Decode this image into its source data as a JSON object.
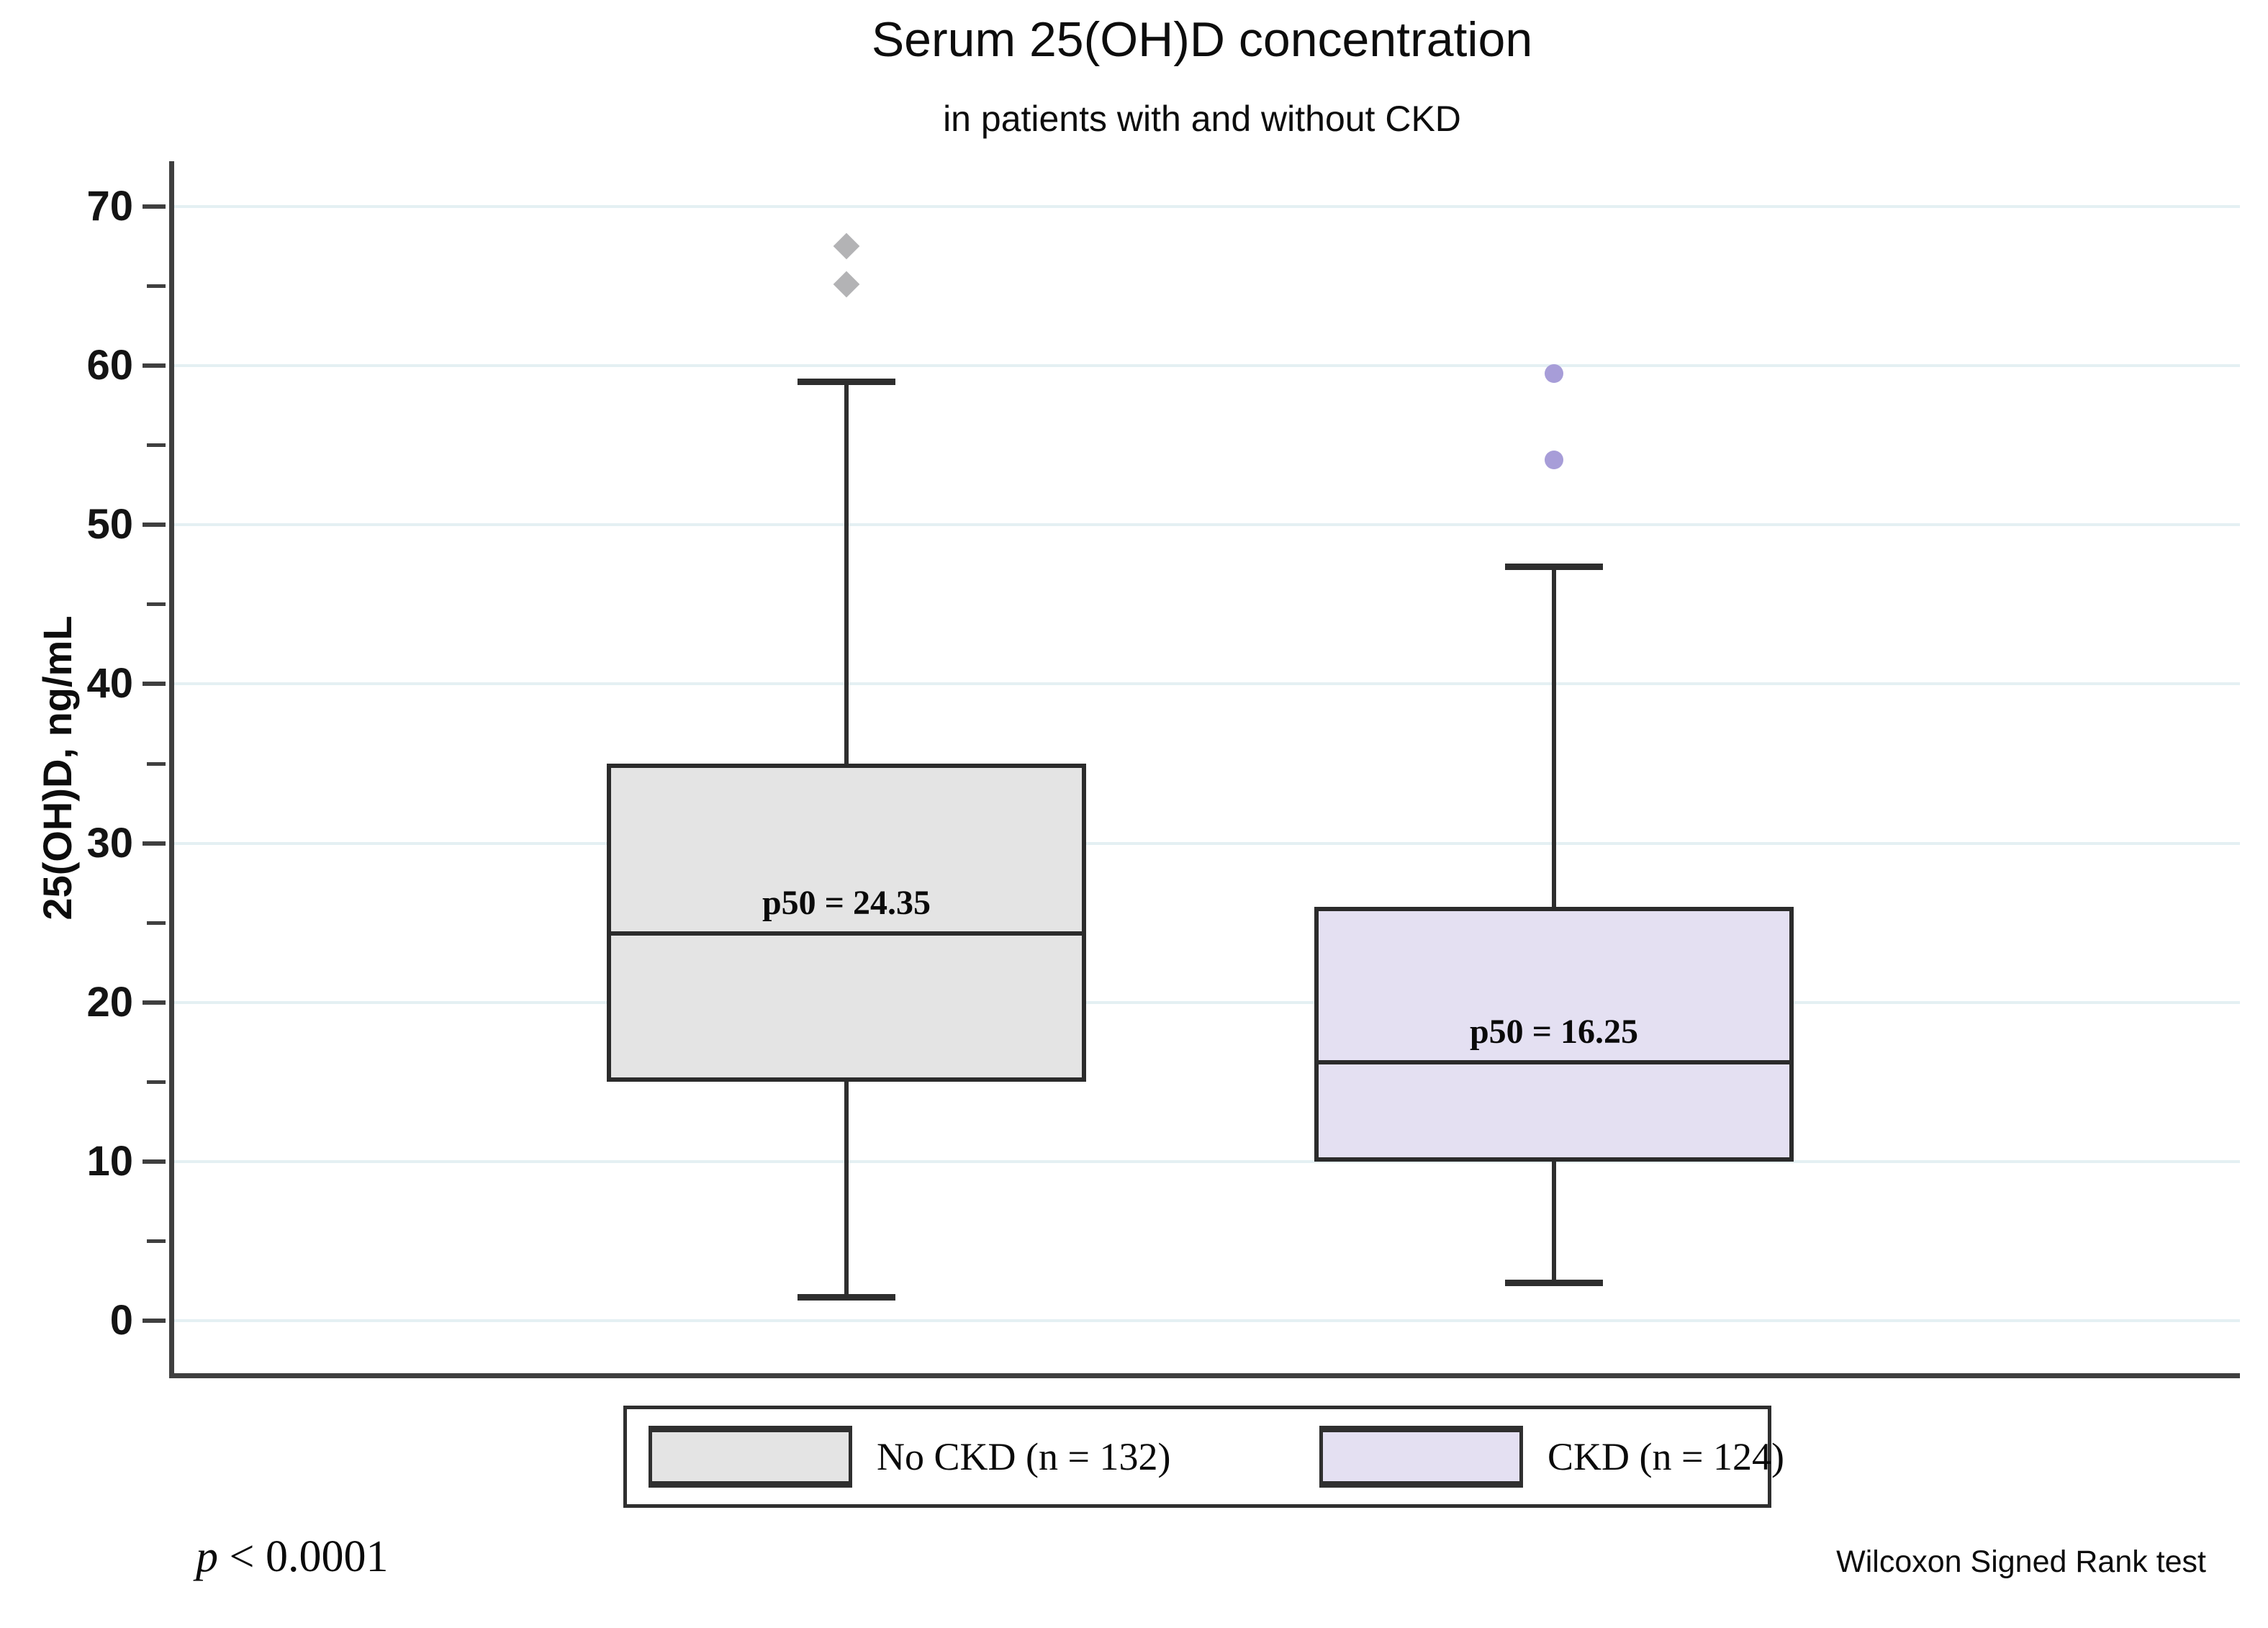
{
  "chart_data": {
    "type": "box",
    "title": "Serum 25(OH)D concentration",
    "subtitle": "in patients with and without CKD",
    "ylabel": "25(OH)D, ng/mL",
    "yaxis": {
      "min": 0,
      "max": 70,
      "major_step": 10,
      "minor_step": 5,
      "ticks": [
        0,
        10,
        20,
        30,
        40,
        50,
        60,
        70
      ],
      "grid": true
    },
    "series": [
      {
        "name": "No CKD (n = 132)",
        "fill": "#e4e4e4",
        "marker": "diamond",
        "marker_color": "#b3b3b5",
        "whisker_low": 1.5,
        "q1": 15,
        "median": 24.35,
        "q3": 35,
        "whisker_high": 59,
        "outliers": [
          65.1,
          67.5
        ],
        "median_label": "p50 = 24.35"
      },
      {
        "name": "CKD (n = 124)",
        "fill": "#e4e0f2",
        "marker": "circle",
        "marker_color": "#a79dd8",
        "whisker_low": 2.4,
        "q1": 10,
        "median": 16.25,
        "q3": 26,
        "whisker_high": 47.4,
        "outliers": [
          54.1,
          59.5
        ],
        "median_label": "p50 = 16.25"
      }
    ],
    "annotations": {
      "p_symbol": "p",
      "p_comparison": " < 0.0001",
      "method": "Wilcoxon Signed Rank test"
    },
    "colors": {
      "grid": "#e4f0f3",
      "axis": "#3f3f3f",
      "box_border": "#2b2b2b"
    },
    "legend_position": "bottom"
  }
}
